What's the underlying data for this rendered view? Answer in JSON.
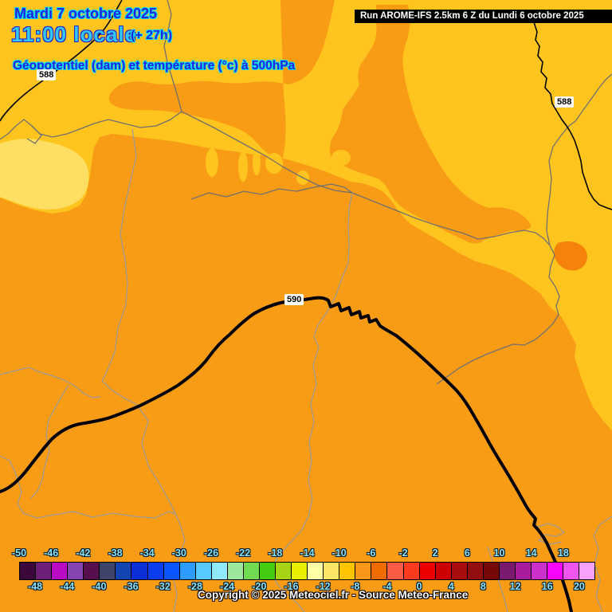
{
  "header": {
    "date_line": "Mardi 7 octobre 2025",
    "time_line": "11:00 locale",
    "offset": "(+ 27h)",
    "subtitle": "Géopotentiel (dam) et température (°c) à 500hPa",
    "run_info": "Run AROME-IFS 2.5km 6 Z du Lundi 6 octobre 2025"
  },
  "map": {
    "contour_labels": [
      {
        "text": "588"
      },
      {
        "text": "590"
      },
      {
        "text": "588"
      }
    ],
    "region_colors": {
      "gold": "#ffc41e",
      "orange": "#f99c15",
      "pale_yellow": "#ffdf63",
      "dark_orange": "#f5820a"
    }
  },
  "colorbar": {
    "unit": "°c",
    "top_labels": [
      "-50",
      "-46",
      "-42",
      "-38",
      "-34",
      "-30",
      "-26",
      "-22",
      "-18",
      "-14",
      "-10",
      "-6",
      "-2",
      "2",
      "6",
      "10",
      "14",
      "18"
    ],
    "bottom_labels": [
      "-48",
      "-44",
      "-40",
      "-36",
      "-32",
      "-28",
      "-24",
      "-20",
      "-16",
      "-12",
      "-8",
      "-4",
      "0",
      "4",
      "8",
      "12",
      "16",
      "20"
    ],
    "cell_colors": [
      "#3a083c",
      "#6e2078",
      "#b90ac4",
      "#8544af",
      "#570e4e",
      "#3e436a",
      "#1245b2",
      "#0c2fd8",
      "#0a3cf0",
      "#0c55ff",
      "#2e9bff",
      "#57c9ff",
      "#8feaff",
      "#9ce79c",
      "#70db50",
      "#44cc11",
      "#a6d414",
      "#e8f000",
      "#ffffa6",
      "#ffe566",
      "#ffc400",
      "#fa9619",
      "#f06c00",
      "#f85c45",
      "#fa3b1e",
      "#ee0000",
      "#cc0000",
      "#a80d0d",
      "#930f0f",
      "#770808",
      "#7a1a6e",
      "#a81d9e",
      "#cb30cb",
      "#fb04fb",
      "#f055f0",
      "#f9a0f9"
    ]
  },
  "footer": {
    "copyright": "Copyright © 2025 Meteociel.fr - Source Meteo-France"
  }
}
